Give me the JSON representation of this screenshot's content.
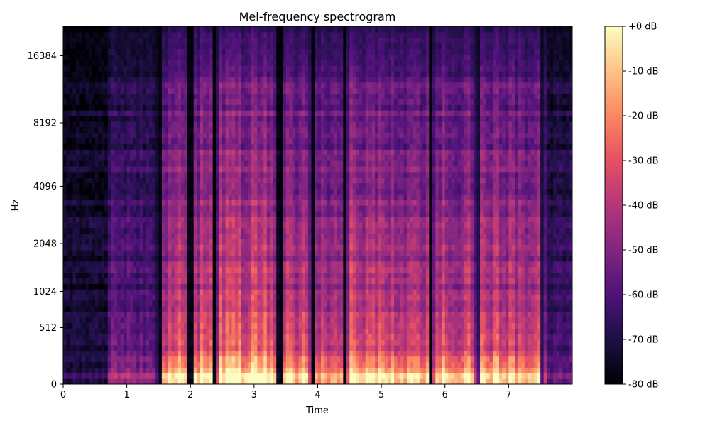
{
  "chart_data": {
    "type": "heatmap",
    "title": "Mel-frequency spectrogram",
    "xlabel": "Time",
    "ylabel": "Hz",
    "x_scale": "linear",
    "y_scale": "mel",
    "xlim": [
      0,
      8.0
    ],
    "ylim": [
      0,
      22050
    ],
    "x_ticks": [
      0,
      1,
      2,
      3,
      4,
      5,
      6,
      7
    ],
    "x_tick_labels": [
      "0",
      "1",
      "2",
      "3",
      "4",
      "5",
      "6",
      "7"
    ],
    "y_ticks": [
      0,
      512,
      1024,
      2048,
      4096,
      8192,
      16384
    ],
    "y_tick_labels": [
      "0",
      "512",
      "1024",
      "2048",
      "4096",
      "8192",
      "16384"
    ],
    "colormap": "magma",
    "colorbar": {
      "min_db": -80,
      "max_db": 0,
      "ticks": [
        0,
        -10,
        -20,
        -30,
        -40,
        -50,
        -60,
        -70,
        -80
      ],
      "tick_labels": [
        "+0 dB",
        "-10 dB",
        "-20 dB",
        "-30 dB",
        "-40 dB",
        "-50 dB",
        "-60 dB",
        "-70 dB",
        "-80 dB"
      ]
    },
    "segments": [
      {
        "start": 0.0,
        "end": 0.7,
        "level": 0.1
      },
      {
        "start": 0.7,
        "end": 1.5,
        "level": 0.3
      },
      {
        "start": 1.55,
        "end": 1.95,
        "level": 0.62
      },
      {
        "start": 2.05,
        "end": 2.35,
        "level": 0.64
      },
      {
        "start": 2.4,
        "end": 3.35,
        "level": 0.66
      },
      {
        "start": 3.45,
        "end": 3.9,
        "level": 0.58
      },
      {
        "start": 3.95,
        "end": 4.4,
        "level": 0.52
      },
      {
        "start": 4.45,
        "end": 5.1,
        "level": 0.64
      },
      {
        "start": 5.1,
        "end": 5.75,
        "level": 0.6
      },
      {
        "start": 5.8,
        "end": 6.35,
        "level": 0.6
      },
      {
        "start": 6.35,
        "end": 7.0,
        "level": 0.62
      },
      {
        "start": 7.0,
        "end": 7.6,
        "level": 0.58
      },
      {
        "start": 7.6,
        "end": 8.0,
        "level": 0.22
      }
    ],
    "silent_gaps": [
      1.5,
      2.0,
      2.38,
      3.42,
      3.92,
      4.43,
      5.78,
      6.52,
      7.53
    ]
  }
}
